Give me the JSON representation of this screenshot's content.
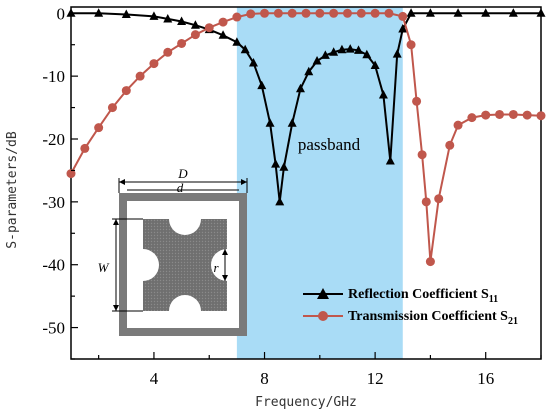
{
  "chart_data": {
    "type": "line",
    "xlabel": "Frequency/GHz",
    "ylabel": "S-parameters/dB",
    "xlim": [
      1,
      18
    ],
    "ylim": [
      -55,
      1
    ],
    "xticks": [
      4,
      8,
      12,
      16
    ],
    "yticks": [
      0,
      -10,
      -20,
      -30,
      -40,
      -50
    ],
    "passband": {
      "from": 7.0,
      "to": 13.0,
      "label": "passband",
      "color": "#a9dcf6"
    },
    "series": [
      {
        "name": "Reflection Coefficient S",
        "name_sub": "11",
        "color": "#000000",
        "marker": "triangle",
        "x": [
          1.0,
          2.0,
          3.0,
          4.0,
          4.5,
          5.0,
          5.5,
          6.0,
          6.5,
          7.0,
          7.3,
          7.6,
          7.9,
          8.2,
          8.4,
          8.55,
          8.7,
          9.0,
          9.3,
          9.6,
          9.9,
          10.2,
          10.5,
          10.8,
          11.1,
          11.4,
          11.7,
          12.0,
          12.3,
          12.55,
          12.8,
          13.0,
          13.3,
          14.0,
          15.0,
          16.0,
          17.0,
          18.0
        ],
        "y": [
          0,
          0,
          -0.2,
          -0.5,
          -0.9,
          -1.3,
          -1.9,
          -2.6,
          -3.5,
          -4.6,
          -5.8,
          -7.9,
          -11.5,
          -17.5,
          -24.0,
          -30.0,
          -24.5,
          -17.5,
          -12.0,
          -9.3,
          -7.6,
          -6.7,
          -6.2,
          -5.8,
          -5.7,
          -5.9,
          -6.6,
          -8.3,
          -13.0,
          -23.5,
          -6.5,
          -2.5,
          0,
          0,
          0,
          0,
          0,
          0
        ]
      },
      {
        "name": "Transmission Coefficient S",
        "name_sub": "21",
        "color": "#c0574c",
        "marker": "circle",
        "x": [
          1.0,
          1.5,
          2.0,
          2.5,
          3.0,
          3.5,
          4.0,
          4.5,
          5.0,
          5.5,
          6.0,
          6.5,
          7.0,
          7.5,
          8.0,
          8.5,
          9.0,
          9.5,
          10.0,
          10.5,
          11.0,
          11.5,
          12.0,
          12.5,
          13.0,
          13.3,
          13.5,
          13.7,
          13.85,
          14.0,
          14.3,
          14.7,
          15.0,
          15.5,
          16.0,
          16.5,
          17.0,
          17.5,
          18.0
        ],
        "y": [
          -25.5,
          -21.5,
          -18.2,
          -15.0,
          -12.3,
          -10.0,
          -8.0,
          -6.2,
          -4.8,
          -3.4,
          -2.3,
          -1.4,
          -0.6,
          -0.1,
          0,
          0,
          0,
          0,
          0,
          0,
          0,
          0,
          0,
          0,
          -0.5,
          -5.0,
          -14.0,
          -22.5,
          -30.0,
          -39.5,
          -29.5,
          -21.0,
          -17.8,
          -16.6,
          -16.2,
          -16.1,
          -16.1,
          -16.2,
          -16.3
        ]
      }
    ],
    "legend": "bottom-right",
    "inset": {
      "labels": {
        "D": "D",
        "d": "d",
        "W": "W",
        "r": "r"
      }
    }
  }
}
